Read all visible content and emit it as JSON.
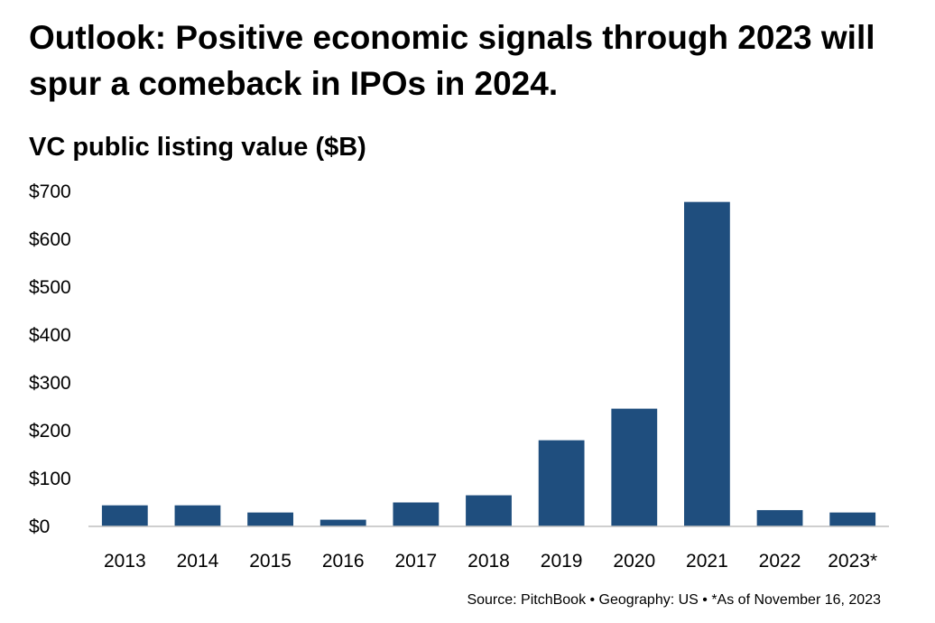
{
  "headline": "Outlook: Positive economic signals through 2023 will spur a comeback in IPOs in 2024.",
  "chart_data": {
    "type": "bar",
    "title": "VC public listing value ($B)",
    "xlabel": "",
    "ylabel": "",
    "categories": [
      "2013",
      "2014",
      "2015",
      "2016",
      "2017",
      "2018",
      "2019",
      "2020",
      "2021",
      "2022",
      "2023*"
    ],
    "values": [
      44,
      44,
      29,
      14,
      50,
      65,
      180,
      246,
      678,
      34,
      29
    ],
    "ylim": [
      0,
      700
    ],
    "yticks": [
      0,
      100,
      200,
      300,
      400,
      500,
      600,
      700
    ],
    "ytick_labels": [
      "$0",
      "$100",
      "$200",
      "$300",
      "$400",
      "$500",
      "$600",
      "$700"
    ],
    "grid": false,
    "bar_color": "#1f4e7e"
  },
  "source": "Source: PitchBook  •  Geography: US  •  *As of November 16, 2023"
}
